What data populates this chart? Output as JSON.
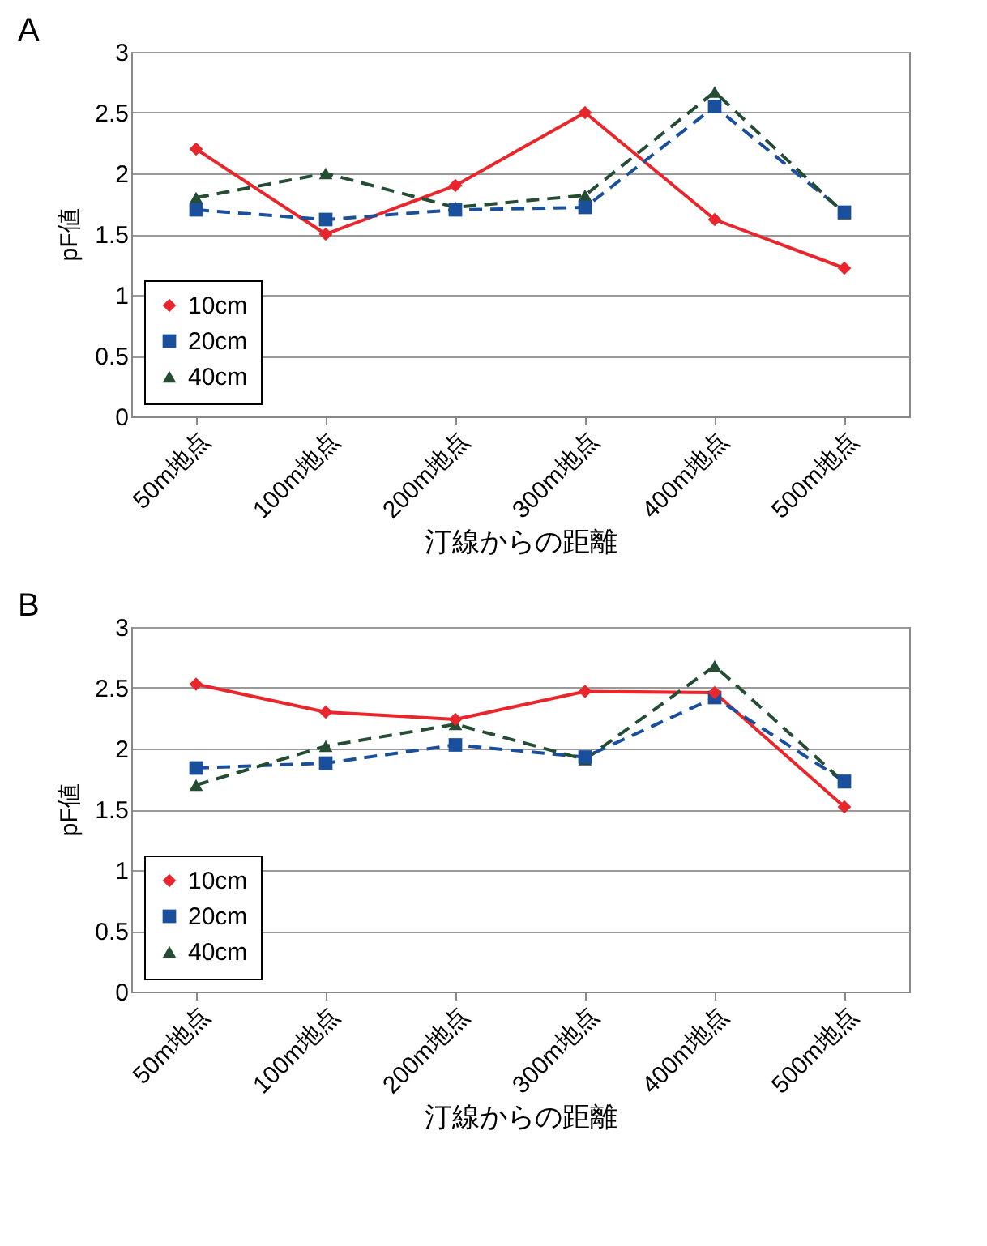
{
  "chart_data": [
    {
      "type": "line",
      "title": "A",
      "xlabel": "汀線からの距離",
      "ylabel": "pF値",
      "categories": [
        "50m地点",
        "100m地点",
        "200m地点",
        "300m地点",
        "400m地点",
        "500m地点"
      ],
      "ylim": [
        0,
        3
      ],
      "yticks": [
        0,
        0.5,
        1,
        1.5,
        2,
        2.5,
        3
      ],
      "grid": "y",
      "legend": "bottom left",
      "series": [
        {
          "name": "10cm",
          "color": "#e8262b",
          "marker": "diamond",
          "line_style": "solid",
          "values": [
            2.2,
            1.5,
            1.9,
            2.5,
            1.62,
            1.22
          ]
        },
        {
          "name": "20cm",
          "color": "#1a4f9c",
          "marker": "square",
          "line_style": "dashed",
          "values": [
            1.7,
            1.62,
            1.7,
            1.72,
            2.55,
            1.68
          ]
        },
        {
          "name": "40cm",
          "color": "#254d33",
          "marker": "triangle",
          "line_style": "dashed",
          "values": [
            1.8,
            2.0,
            1.72,
            1.82,
            2.67,
            1.67
          ]
        }
      ]
    },
    {
      "type": "line",
      "title": "B",
      "xlabel": "汀線からの距離",
      "ylabel": "pF値",
      "categories": [
        "50m地点",
        "100m地点",
        "200m地点",
        "300m地点",
        "400m地点",
        "500m地点"
      ],
      "ylim": [
        0,
        3
      ],
      "yticks": [
        0,
        0.5,
        1,
        1.5,
        2,
        2.5,
        3
      ],
      "grid": "y",
      "legend": "bottom left",
      "series": [
        {
          "name": "10cm",
          "color": "#e8262b",
          "marker": "diamond",
          "line_style": "solid",
          "values": [
            2.53,
            2.3,
            2.24,
            2.47,
            2.46,
            1.52
          ]
        },
        {
          "name": "20cm",
          "color": "#1a4f9c",
          "marker": "square",
          "line_style": "dashed",
          "values": [
            1.84,
            1.88,
            2.03,
            1.93,
            2.42,
            1.73
          ]
        },
        {
          "name": "40cm",
          "color": "#254d33",
          "marker": "triangle",
          "line_style": "dashed",
          "values": [
            1.7,
            2.02,
            2.2,
            1.91,
            2.68,
            1.72
          ]
        }
      ]
    }
  ]
}
